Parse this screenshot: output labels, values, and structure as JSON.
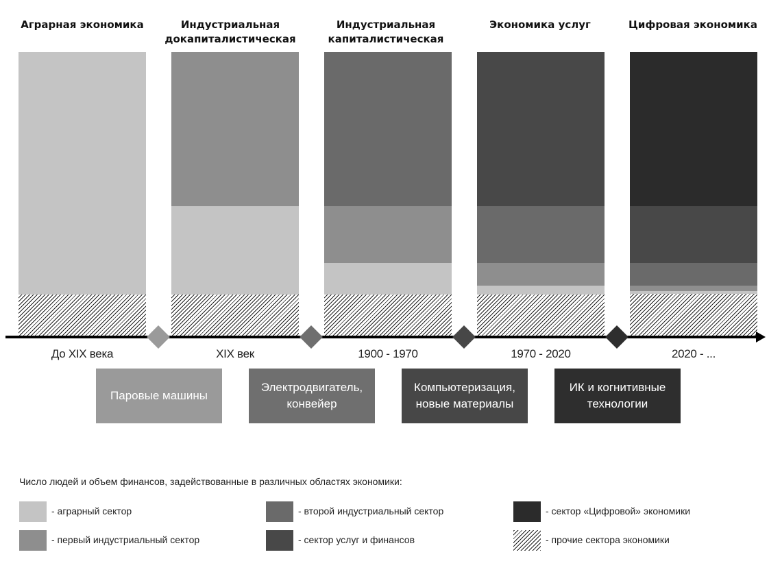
{
  "colors": {
    "agrarian": "#c4c4c4",
    "industrial1": "#8e8e8e",
    "industrial2": "#6a6a6a",
    "services": "#484848",
    "digital": "#2b2b2b",
    "diamond1": "#9a9a9a",
    "diamond2": "#6f6f6f",
    "diamond3": "#474747",
    "diamond4": "#2e2e2e"
  },
  "eras": [
    {
      "title": "Аграрная\nэкономика",
      "period": "До XIX века"
    },
    {
      "title": "Индустриальная\nдокапиталистическая",
      "period": "XIX век"
    },
    {
      "title": "Индустриальная\nкапиталистическая",
      "period": "1900 - 1970"
    },
    {
      "title": "Экономика\nуслуг",
      "period": "1970 - 2020"
    },
    {
      "title": "Цифровая\nэкономика",
      "period": "2020 - ..."
    }
  ],
  "technologies": [
    {
      "label": "Паровые машины"
    },
    {
      "label": "Электродвигатель,\nконвейер"
    },
    {
      "label": "Компьютеризация,\nновые материалы"
    },
    {
      "label": "ИК и когнитивные\nтехнологии"
    }
  ],
  "columns": [
    {
      "segments": [
        {
          "sector": "agrarian",
          "share": 0.85
        },
        {
          "sector": "other",
          "share": 0.15
        }
      ]
    },
    {
      "segments": [
        {
          "sector": "industrial1",
          "share": 0.54
        },
        {
          "sector": "agrarian",
          "share": 0.31
        },
        {
          "sector": "other",
          "share": 0.15
        }
      ]
    },
    {
      "segments": [
        {
          "sector": "industrial2",
          "share": 0.54
        },
        {
          "sector": "industrial1",
          "share": 0.2
        },
        {
          "sector": "agrarian",
          "share": 0.11
        },
        {
          "sector": "other",
          "share": 0.15
        }
      ]
    },
    {
      "segments": [
        {
          "sector": "services",
          "share": 0.54
        },
        {
          "sector": "industrial2",
          "share": 0.2
        },
        {
          "sector": "industrial1",
          "share": 0.08
        },
        {
          "sector": "agrarian",
          "share": 0.03
        },
        {
          "sector": "other",
          "share": 0.15
        }
      ]
    },
    {
      "segments": [
        {
          "sector": "digital",
          "share": 0.54
        },
        {
          "sector": "services",
          "share": 0.2
        },
        {
          "sector": "industrial2",
          "share": 0.08
        },
        {
          "sector": "industrial1",
          "share": 0.02
        },
        {
          "sector": "agrarian",
          "share": 0.01
        },
        {
          "sector": "other",
          "share": 0.15
        }
      ]
    }
  ],
  "legend": {
    "title": "Число людей и объем финансов, задействованные в различных областях экономики:",
    "items": [
      {
        "sector": "agrarian",
        "label": "- аграрный сектор"
      },
      {
        "sector": "industrial1",
        "label": "- первый индустриальный сектор"
      },
      {
        "sector": "industrial2",
        "label": "- второй индустриальный сектор"
      },
      {
        "sector": "services",
        "label": "- сектор услуг и финансов"
      },
      {
        "sector": "digital",
        "label": "- сектор «Цифровой» экономики"
      },
      {
        "sector": "other",
        "label": "- прочие сектора экономики"
      }
    ]
  }
}
